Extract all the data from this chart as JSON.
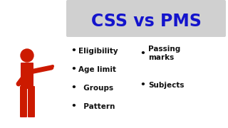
{
  "title": "CSS vs PMS",
  "title_color": "#1414cc",
  "title_bg_color": "#d0d0d0",
  "background_color": "#ffffff",
  "left_bullets": [
    "Eligibility",
    "Age limit",
    "  Groups",
    "  Pattern"
  ],
  "right_bullets": [
    "Passing\nmarks",
    "Subjects"
  ],
  "bullet_color": "#111111",
  "figure_color": "#cc1a00",
  "figsize": [
    3.2,
    1.8
  ],
  "dpi": 100
}
